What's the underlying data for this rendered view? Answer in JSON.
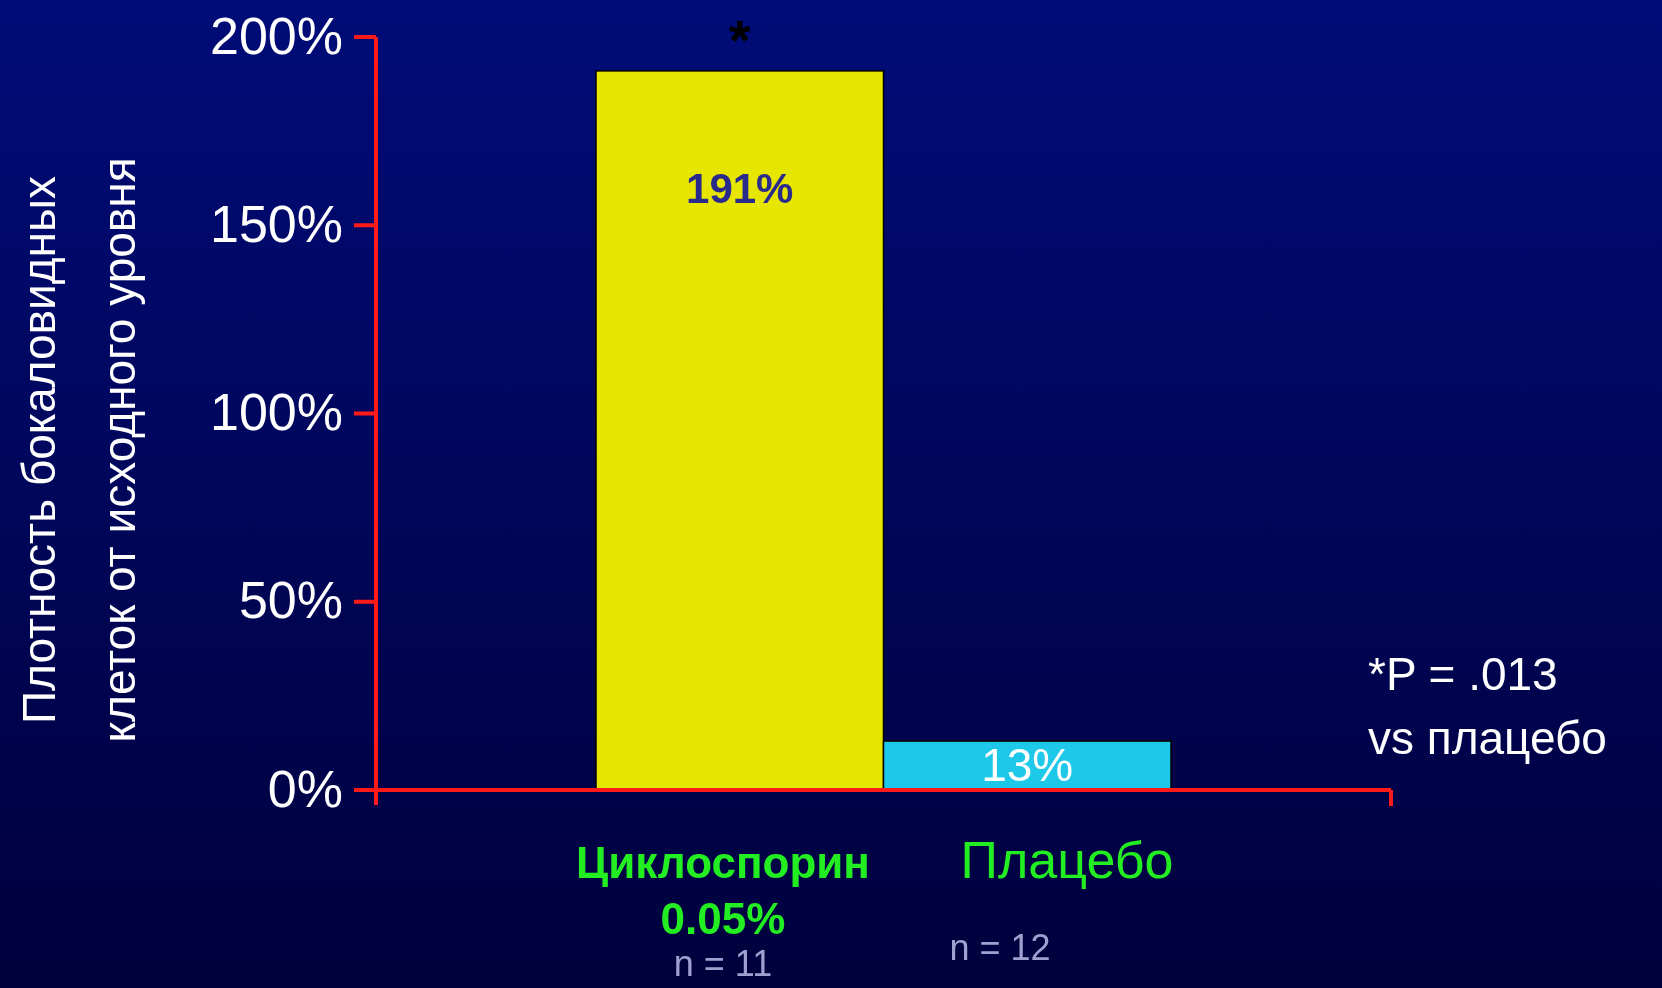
{
  "chart_data": {
    "type": "bar",
    "ylabel": "Плотность бокаловидных\nклеток от исходного уровня",
    "categories": [
      "Циклоспорин\n0.05%",
      "Плацебо"
    ],
    "values": [
      191,
      13
    ],
    "colors": [
      "#e6e600",
      "#1ec8e8"
    ],
    "value_labels": [
      "191%",
      "13%"
    ],
    "ylim": [
      0,
      200
    ],
    "yticks": [
      {
        "value": 0,
        "label": "0%"
      },
      {
        "value": 50,
        "label": "50%"
      },
      {
        "value": 100,
        "label": "100%"
      },
      {
        "value": 150,
        "label": "150%"
      },
      {
        "value": 200,
        "label": "200%"
      }
    ],
    "grid": false,
    "annotations": [
      {
        "text": "*",
        "x": "Циклоспорин\n0.05%",
        "y": 191
      },
      "n = 11",
      "n = 12",
      "*P = .013\nvs плацебо"
    ]
  }
}
